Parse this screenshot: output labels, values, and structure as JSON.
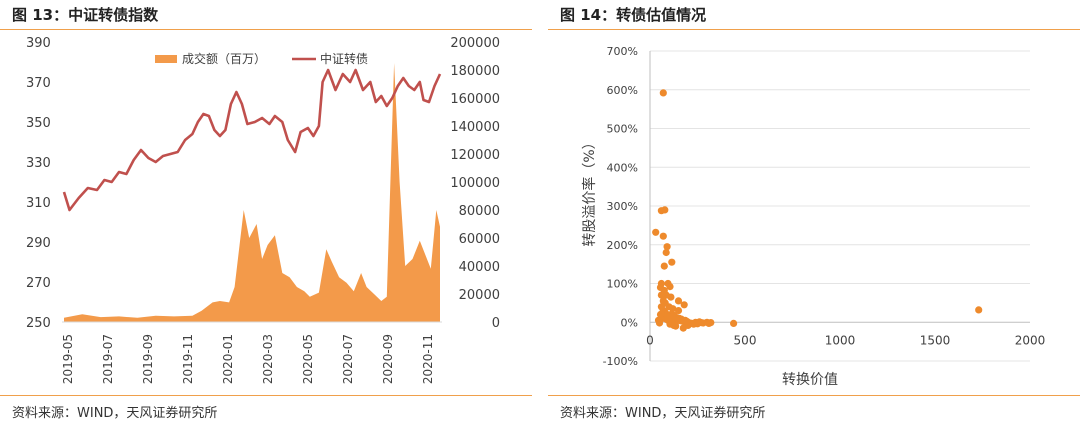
{
  "colors": {
    "accent": "#f0a04b",
    "area": "#f39a4a",
    "line": "#c0504d",
    "scatter": "#ee8a2c"
  },
  "left": {
    "title": "图 13：中证转债指数",
    "source": "资料来源：WIND，天风证券研究所"
  },
  "right": {
    "title": "图 14：转债估值情况",
    "source": "资料来源：WIND，天风证券研究所"
  },
  "chart_data": [
    {
      "type": "line",
      "legend": [
        "成交额（百万）",
        "中证转债"
      ],
      "legend_placement": "top",
      "x_ticks": [
        "2019-05",
        "2019-07",
        "2019-09",
        "2019-11",
        "2020-01",
        "2020-03",
        "2020-05",
        "2020-07",
        "2020-09",
        "2020-11"
      ],
      "y_left_ticks": [
        "390",
        "370",
        "350",
        "330",
        "310",
        "290",
        "270",
        "250"
      ],
      "y_right_ticks": [
        "200000",
        "180000",
        "160000",
        "140000",
        "120000",
        "100000",
        "80000",
        "60000",
        "40000",
        "20000",
        "0"
      ],
      "ylim_left": [
        250,
        390
      ],
      "ylim_right": [
        0,
        200000
      ],
      "series": [
        {
          "name": "中证转债",
          "axis": "left",
          "kind": "line",
          "values": [
            [
              0,
              315
            ],
            [
              0.3,
              306
            ],
            [
              0.8,
              312
            ],
            [
              1.3,
              317
            ],
            [
              1.8,
              316
            ],
            [
              2.2,
              321
            ],
            [
              2.6,
              320
            ],
            [
              3.0,
              325
            ],
            [
              3.4,
              324
            ],
            [
              3.8,
              331
            ],
            [
              4.2,
              336
            ],
            [
              4.6,
              332
            ],
            [
              5.0,
              330
            ],
            [
              5.4,
              333
            ],
            [
              5.8,
              334
            ],
            [
              6.2,
              335
            ],
            [
              6.6,
              341
            ],
            [
              7.0,
              344
            ],
            [
              7.3,
              350
            ],
            [
              7.6,
              354
            ],
            [
              7.9,
              353
            ],
            [
              8.2,
              346
            ],
            [
              8.5,
              343
            ],
            [
              8.8,
              346
            ],
            [
              9.1,
              359
            ],
            [
              9.4,
              365
            ],
            [
              9.7,
              359
            ],
            [
              10.0,
              349
            ],
            [
              10.4,
              350
            ],
            [
              10.8,
              352
            ],
            [
              11.2,
              349
            ],
            [
              11.5,
              353
            ],
            [
              11.9,
              350
            ],
            [
              12.2,
              341
            ],
            [
              12.6,
              335
            ],
            [
              12.9,
              345
            ],
            [
              13.3,
              347
            ],
            [
              13.6,
              343
            ],
            [
              13.9,
              348
            ],
            [
              14.1,
              370
            ],
            [
              14.4,
              376
            ],
            [
              14.8,
              366
            ],
            [
              15.2,
              374
            ],
            [
              15.6,
              370
            ],
            [
              15.9,
              376
            ],
            [
              16.3,
              366
            ],
            [
              16.7,
              370
            ],
            [
              17.0,
              360
            ],
            [
              17.3,
              363
            ],
            [
              17.6,
              358
            ],
            [
              17.9,
              362
            ],
            [
              18.2,
              368
            ],
            [
              18.5,
              372
            ],
            [
              18.8,
              368
            ],
            [
              19.1,
              366
            ],
            [
              19.4,
              370
            ],
            [
              19.6,
              361
            ],
            [
              19.9,
              360
            ],
            [
              20.2,
              368
            ],
            [
              20.5,
              374
            ]
          ]
        },
        {
          "name": "成交额（百万）",
          "axis": "right",
          "kind": "area",
          "values": [
            [
              0,
              3000
            ],
            [
              1,
              5500
            ],
            [
              2,
              3500
            ],
            [
              3,
              4000
            ],
            [
              4,
              3000
            ],
            [
              5,
              4500
            ],
            [
              6,
              4000
            ],
            [
              7,
              4500
            ],
            [
              7.5,
              8000
            ],
            [
              8.1,
              14000
            ],
            [
              8.5,
              15000
            ],
            [
              9.0,
              14000
            ],
            [
              9.3,
              25000
            ],
            [
              9.8,
              80000
            ],
            [
              10.1,
              60000
            ],
            [
              10.5,
              70000
            ],
            [
              10.8,
              45000
            ],
            [
              11.1,
              55000
            ],
            [
              11.5,
              62000
            ],
            [
              11.9,
              35000
            ],
            [
              12.3,
              32000
            ],
            [
              12.7,
              25000
            ],
            [
              13.1,
              22000
            ],
            [
              13.4,
              18000
            ],
            [
              13.9,
              21000
            ],
            [
              14.3,
              52000
            ],
            [
              14.6,
              43000
            ],
            [
              15.0,
              32000
            ],
            [
              15.4,
              28000
            ],
            [
              15.8,
              22000
            ],
            [
              16.2,
              35000
            ],
            [
              16.5,
              25000
            ],
            [
              16.9,
              20000
            ],
            [
              17.3,
              15000
            ],
            [
              17.6,
              18000
            ],
            [
              18.0,
              185000
            ],
            [
              18.3,
              100000
            ],
            [
              18.6,
              40000
            ],
            [
              19.0,
              45000
            ],
            [
              19.4,
              58000
            ],
            [
              19.7,
              48000
            ],
            [
              20.0,
              38000
            ],
            [
              20.3,
              80000
            ],
            [
              20.5,
              68000
            ]
          ]
        }
      ]
    },
    {
      "type": "scatter",
      "xlabel": "转换价值",
      "ylabel": "转股溢价率（%）",
      "x_ticks": [
        "0",
        "500",
        "1000",
        "1500",
        "2000"
      ],
      "y_ticks": [
        "700%",
        "600%",
        "500%",
        "400%",
        "300%",
        "200%",
        "100%",
        "0%",
        "-100%"
      ],
      "xlim": [
        0,
        2000
      ],
      "ylim": [
        -100,
        700
      ],
      "points": [
        [
          70,
          592
        ],
        [
          1730,
          32
        ],
        [
          60,
          288
        ],
        [
          78,
          290
        ],
        [
          30,
          232
        ],
        [
          70,
          222
        ],
        [
          90,
          195
        ],
        [
          85,
          180
        ],
        [
          115,
          155
        ],
        [
          75,
          145
        ],
        [
          95,
          100
        ],
        [
          60,
          100
        ],
        [
          105,
          92
        ],
        [
          55,
          90
        ],
        [
          75,
          82
        ],
        [
          60,
          70
        ],
        [
          110,
          65
        ],
        [
          85,
          70
        ],
        [
          150,
          55
        ],
        [
          180,
          45
        ],
        [
          70,
          55
        ],
        [
          80,
          50
        ],
        [
          100,
          40
        ],
        [
          120,
          35
        ],
        [
          150,
          30
        ],
        [
          60,
          40
        ],
        [
          70,
          30
        ],
        [
          80,
          25
        ],
        [
          90,
          20
        ],
        [
          100,
          15
        ],
        [
          110,
          12
        ],
        [
          120,
          10
        ],
        [
          130,
          8
        ],
        [
          140,
          6
        ],
        [
          150,
          5
        ],
        [
          160,
          4
        ],
        [
          170,
          3
        ],
        [
          180,
          2
        ],
        [
          190,
          1
        ],
        [
          200,
          0
        ],
        [
          210,
          -2
        ],
        [
          220,
          -3
        ],
        [
          240,
          0
        ],
        [
          260,
          1
        ],
        [
          280,
          -2
        ],
        [
          300,
          0
        ],
        [
          320,
          -1
        ],
        [
          440,
          -3
        ],
        [
          95,
          5
        ],
        [
          105,
          -5
        ],
        [
          115,
          2
        ],
        [
          125,
          -8
        ],
        [
          135,
          -10
        ],
        [
          175,
          -15
        ],
        [
          200,
          -8
        ],
        [
          230,
          -5
        ],
        [
          65,
          10
        ],
        [
          75,
          15
        ],
        [
          85,
          8
        ],
        [
          95,
          12
        ],
        [
          110,
          20
        ],
        [
          125,
          18
        ],
        [
          140,
          12
        ],
        [
          155,
          10
        ],
        [
          165,
          8
        ],
        [
          185,
          5
        ],
        [
          195,
          2
        ],
        [
          250,
          -4
        ],
        [
          270,
          -1
        ],
        [
          310,
          -3
        ],
        [
          55,
          20
        ],
        [
          45,
          5
        ],
        [
          50,
          -2
        ]
      ]
    }
  ]
}
